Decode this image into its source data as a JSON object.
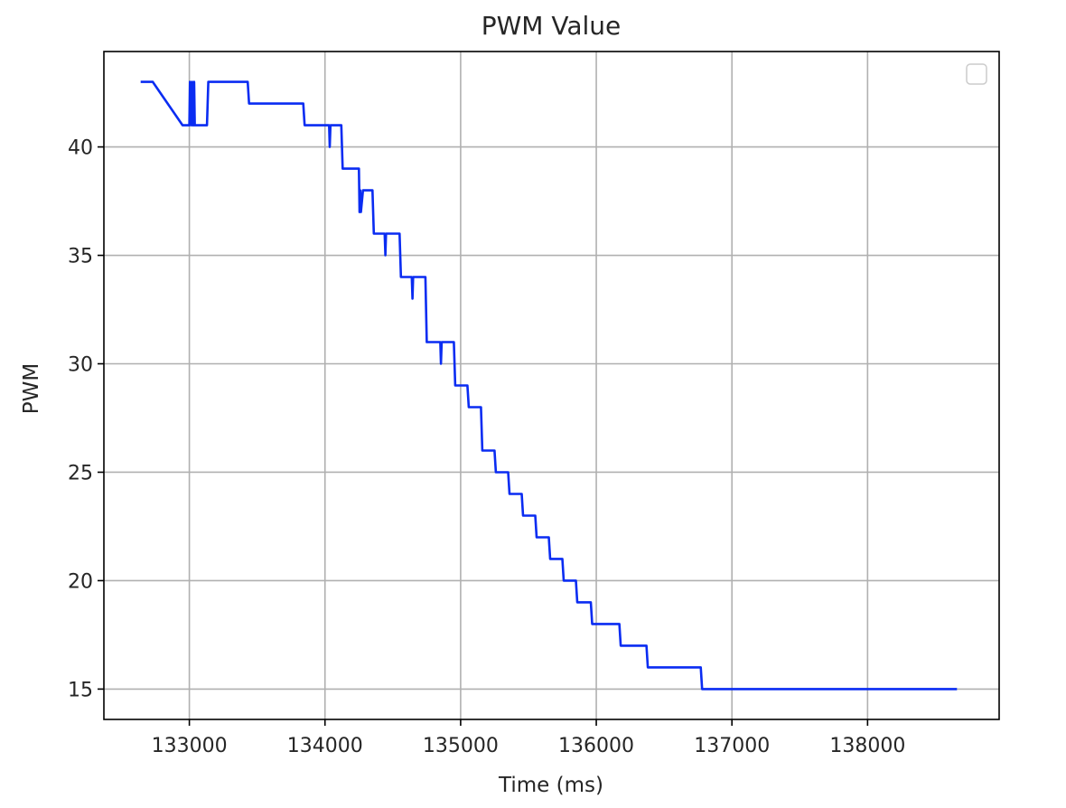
{
  "chart_data": {
    "type": "line",
    "title": "PWM Value",
    "xlabel": "Time (ms)",
    "ylabel": "PWM",
    "xlim": [
      132370,
      138970
    ],
    "ylim": [
      13.6,
      44.4
    ],
    "xticks": [
      133000,
      134000,
      135000,
      136000,
      137000,
      138000
    ],
    "yticks": [
      15,
      20,
      25,
      30,
      35,
      40
    ],
    "grid": true,
    "legend": {
      "placement": "top-right",
      "entries": []
    },
    "colors": {
      "line": "#0a2cf2",
      "grid": "#b0b0b0",
      "frame": "#000000"
    },
    "series": [
      {
        "x": [
          132650,
          132730,
          132950,
          133000,
          133005,
          133015,
          133020,
          133025,
          133030,
          133035,
          133040,
          133045,
          133050,
          133130,
          133140,
          133430,
          133440,
          133840,
          133850,
          134030,
          134035,
          134040,
          134045,
          134120,
          134130,
          134250,
          134255,
          134260,
          134265,
          134280,
          134290,
          134350,
          134360,
          134440,
          134445,
          134450,
          134455,
          134550,
          134560,
          134640,
          134645,
          134650,
          134655,
          134740,
          134750,
          134850,
          134855,
          134860,
          134865,
          134950,
          134960,
          135050,
          135060,
          135150,
          135160,
          135250,
          135260,
          135350,
          135360,
          135450,
          135460,
          135550,
          135560,
          135650,
          135660,
          135750,
          135760,
          135850,
          135860,
          135960,
          135970,
          136170,
          136180,
          136370,
          136380,
          136770,
          136780,
          138650
        ],
        "y": [
          43,
          43,
          41,
          41,
          43,
          41,
          43,
          41,
          41,
          43,
          41,
          41,
          41,
          41,
          43,
          43,
          42,
          42,
          41,
          41,
          40,
          41,
          41,
          41,
          39,
          39,
          37,
          38,
          37,
          38,
          38,
          38,
          36,
          36,
          35,
          36,
          36,
          36,
          34,
          34,
          33,
          34,
          34,
          34,
          31,
          31,
          30,
          31,
          31,
          31,
          29,
          29,
          28,
          28,
          26,
          26,
          25,
          25,
          24,
          24,
          23,
          23,
          22,
          22,
          21,
          21,
          20,
          20,
          19,
          19,
          18,
          18,
          17,
          17,
          16,
          16,
          15,
          15
        ]
      }
    ]
  }
}
